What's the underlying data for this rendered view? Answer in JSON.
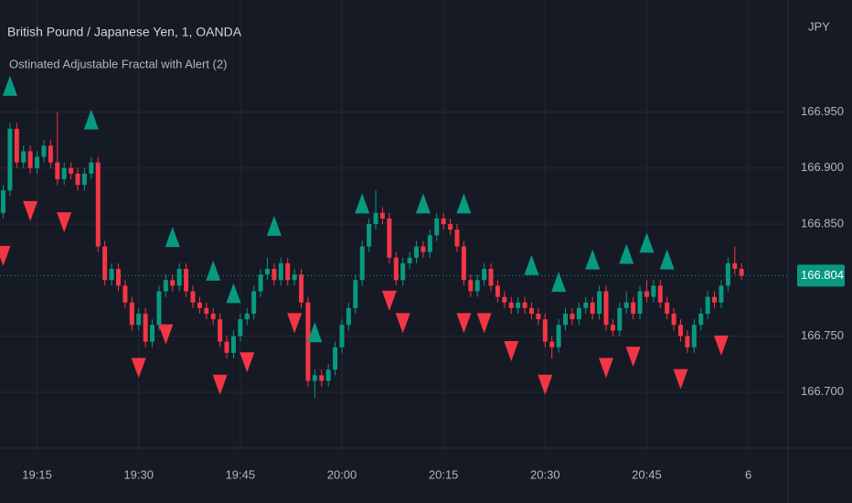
{
  "chart_data": {
    "type": "candlestick",
    "title": "British Pound / Japanese Yen, 1, OANDA",
    "subtitle": "Ostinated Adjustable Fractal with Alert (2)",
    "currency": "JPY",
    "up_color": "#089981",
    "down_color": "#f23645",
    "x": [
      "19:10",
      "19:11",
      "19:12",
      "19:13",
      "19:14",
      "19:15",
      "19:16",
      "19:17",
      "19:18",
      "19:19",
      "19:20",
      "19:21",
      "19:22",
      "19:23",
      "19:24",
      "19:25",
      "19:26",
      "19:27",
      "19:28",
      "19:29",
      "19:30",
      "19:31",
      "19:32",
      "19:33",
      "19:34",
      "19:35",
      "19:36",
      "19:37",
      "19:38",
      "19:39",
      "19:40",
      "19:41",
      "19:42",
      "19:43",
      "19:44",
      "19:45",
      "19:46",
      "19:47",
      "19:48",
      "19:49",
      "19:50",
      "19:51",
      "19:52",
      "19:53",
      "19:54",
      "19:55",
      "19:56",
      "19:57",
      "19:58",
      "19:59",
      "20:00",
      "20:01",
      "20:02",
      "20:03",
      "20:04",
      "20:05",
      "20:06",
      "20:07",
      "20:08",
      "20:09",
      "20:10",
      "20:11",
      "20:12",
      "20:13",
      "20:14",
      "20:15",
      "20:16",
      "20:17",
      "20:18",
      "20:19",
      "20:20",
      "20:21",
      "20:22",
      "20:23",
      "20:24",
      "20:25",
      "20:26",
      "20:27",
      "20:28",
      "20:29",
      "20:30",
      "20:31",
      "20:32",
      "20:33",
      "20:34",
      "20:35",
      "20:36",
      "20:37",
      "20:38",
      "20:39",
      "20:40",
      "20:41",
      "20:42",
      "20:43",
      "20:44",
      "20:45",
      "20:46",
      "20:47",
      "20:48",
      "20:49",
      "20:50",
      "20:51",
      "20:52",
      "20:53",
      "20:54",
      "20:55",
      "20:56",
      "20:57",
      "20:58",
      "20:59"
    ],
    "candles": [
      [
        166.86,
        166.885,
        166.855,
        166.88
      ],
      [
        166.88,
        166.94,
        166.875,
        166.935
      ],
      [
        166.935,
        166.94,
        166.9,
        166.905
      ],
      [
        166.905,
        166.92,
        166.9,
        166.915
      ],
      [
        166.915,
        166.92,
        166.895,
        166.9
      ],
      [
        166.9,
        166.915,
        166.895,
        166.91
      ],
      [
        166.91,
        166.925,
        166.905,
        166.92
      ],
      [
        166.92,
        166.925,
        166.9,
        166.905
      ],
      [
        166.905,
        166.95,
        166.885,
        166.89
      ],
      [
        166.89,
        166.905,
        166.885,
        166.9
      ],
      [
        166.9,
        166.905,
        166.89,
        166.895
      ],
      [
        166.895,
        166.9,
        166.88,
        166.885
      ],
      [
        166.885,
        166.9,
        166.88,
        166.895
      ],
      [
        166.895,
        166.91,
        166.89,
        166.905
      ],
      [
        166.905,
        166.91,
        166.825,
        166.83
      ],
      [
        166.83,
        166.835,
        166.795,
        166.8
      ],
      [
        166.8,
        166.815,
        166.795,
        166.81
      ],
      [
        166.81,
        166.815,
        166.79,
        166.795
      ],
      [
        166.795,
        166.8,
        166.775,
        166.78
      ],
      [
        166.78,
        166.785,
        166.755,
        166.76
      ],
      [
        166.76,
        166.775,
        166.755,
        166.77
      ],
      [
        166.77,
        166.775,
        166.74,
        166.745
      ],
      [
        166.745,
        166.765,
        166.74,
        166.76
      ],
      [
        166.76,
        166.795,
        166.755,
        166.79
      ],
      [
        166.79,
        166.805,
        166.785,
        166.8
      ],
      [
        166.8,
        166.805,
        166.79,
        166.795
      ],
      [
        166.795,
        166.815,
        166.79,
        166.81
      ],
      [
        166.81,
        166.815,
        166.785,
        166.79
      ],
      [
        166.79,
        166.795,
        166.775,
        166.78
      ],
      [
        166.78,
        166.785,
        166.77,
        166.775
      ],
      [
        166.775,
        166.78,
        166.765,
        166.77
      ],
      [
        166.77,
        166.775,
        166.76,
        166.765
      ],
      [
        166.765,
        166.77,
        166.74,
        166.745
      ],
      [
        166.745,
        166.75,
        166.73,
        166.735
      ],
      [
        166.735,
        166.755,
        166.73,
        166.75
      ],
      [
        166.75,
        166.77,
        166.745,
        166.765
      ],
      [
        166.765,
        166.775,
        166.76,
        166.77
      ],
      [
        166.77,
        166.795,
        166.765,
        166.79
      ],
      [
        166.79,
        166.81,
        166.785,
        166.805
      ],
      [
        166.805,
        166.82,
        166.8,
        166.81
      ],
      [
        166.81,
        166.815,
        166.795,
        166.8
      ],
      [
        166.8,
        166.82,
        166.795,
        166.815
      ],
      [
        166.815,
        166.82,
        166.795,
        166.8
      ],
      [
        166.8,
        166.81,
        166.795,
        166.805
      ],
      [
        166.805,
        166.81,
        166.775,
        166.78
      ],
      [
        166.78,
        166.785,
        166.705,
        166.71
      ],
      [
        166.71,
        166.72,
        166.695,
        166.715
      ],
      [
        166.715,
        166.72,
        166.705,
        166.71
      ],
      [
        166.71,
        166.725,
        166.705,
        166.72
      ],
      [
        166.72,
        166.745,
        166.715,
        166.74
      ],
      [
        166.74,
        166.765,
        166.735,
        166.76
      ],
      [
        166.76,
        166.78,
        166.755,
        166.775
      ],
      [
        166.775,
        166.805,
        166.77,
        166.8
      ],
      [
        166.8,
        166.835,
        166.795,
        166.83
      ],
      [
        166.83,
        166.855,
        166.825,
        166.85
      ],
      [
        166.85,
        166.88,
        166.845,
        166.86
      ],
      [
        166.86,
        166.865,
        166.85,
        166.855
      ],
      [
        166.855,
        166.86,
        166.815,
        166.82
      ],
      [
        166.82,
        166.825,
        166.795,
        166.8
      ],
      [
        166.8,
        166.82,
        166.795,
        166.815
      ],
      [
        166.815,
        166.825,
        166.81,
        166.82
      ],
      [
        166.82,
        166.835,
        166.815,
        166.83
      ],
      [
        166.83,
        166.835,
        166.82,
        166.825
      ],
      [
        166.825,
        166.845,
        166.82,
        166.84
      ],
      [
        166.84,
        166.86,
        166.835,
        166.855
      ],
      [
        166.855,
        166.86,
        166.845,
        166.85
      ],
      [
        166.85,
        166.855,
        166.84,
        166.845
      ],
      [
        166.845,
        166.85,
        166.825,
        166.83
      ],
      [
        166.83,
        166.835,
        166.795,
        166.8
      ],
      [
        166.8,
        166.805,
        166.785,
        166.79
      ],
      [
        166.79,
        166.805,
        166.785,
        166.8
      ],
      [
        166.8,
        166.815,
        166.795,
        166.81
      ],
      [
        166.81,
        166.815,
        166.79,
        166.795
      ],
      [
        166.795,
        166.8,
        166.78,
        166.785
      ],
      [
        166.785,
        166.79,
        166.775,
        166.78
      ],
      [
        166.78,
        166.785,
        166.77,
        166.775
      ],
      [
        166.775,
        166.785,
        166.77,
        166.78
      ],
      [
        166.78,
        166.785,
        166.77,
        166.775
      ],
      [
        166.775,
        166.78,
        166.765,
        166.77
      ],
      [
        166.77,
        166.775,
        166.76,
        166.765
      ],
      [
        166.765,
        166.77,
        166.74,
        166.745
      ],
      [
        166.745,
        166.75,
        166.73,
        166.74
      ],
      [
        166.74,
        166.765,
        166.735,
        166.76
      ],
      [
        166.76,
        166.775,
        166.755,
        166.77
      ],
      [
        166.77,
        166.775,
        166.76,
        166.765
      ],
      [
        166.765,
        166.78,
        166.76,
        166.775
      ],
      [
        166.775,
        166.785,
        166.77,
        166.78
      ],
      [
        166.78,
        166.785,
        166.765,
        166.77
      ],
      [
        166.77,
        166.795,
        166.765,
        166.79
      ],
      [
        166.79,
        166.795,
        166.755,
        166.76
      ],
      [
        166.76,
        166.765,
        166.75,
        166.755
      ],
      [
        166.755,
        166.78,
        166.75,
        166.775
      ],
      [
        166.775,
        166.79,
        166.77,
        166.78
      ],
      [
        166.78,
        166.785,
        166.765,
        166.77
      ],
      [
        166.77,
        166.795,
        166.765,
        166.79
      ],
      [
        166.79,
        166.8,
        166.78,
        166.785
      ],
      [
        166.785,
        166.8,
        166.78,
        166.795
      ],
      [
        166.795,
        166.8,
        166.775,
        166.78
      ],
      [
        166.78,
        166.785,
        166.765,
        166.77
      ],
      [
        166.77,
        166.775,
        166.755,
        166.76
      ],
      [
        166.76,
        166.765,
        166.745,
        166.75
      ],
      [
        166.75,
        166.755,
        166.735,
        166.74
      ],
      [
        166.74,
        166.765,
        166.735,
        166.76
      ],
      [
        166.76,
        166.775,
        166.755,
        166.77
      ],
      [
        166.77,
        166.79,
        166.765,
        166.785
      ],
      [
        166.785,
        166.79,
        166.775,
        166.78
      ],
      [
        166.78,
        166.8,
        166.775,
        166.795
      ],
      [
        166.795,
        166.82,
        166.79,
        166.815
      ],
      [
        166.815,
        166.83,
        166.805,
        166.81
      ],
      [
        166.81,
        166.815,
        166.8,
        166.804
      ]
    ],
    "fractal_up": [
      "19:11",
      "19:23",
      "19:35",
      "19:41",
      "19:44",
      "19:50",
      "19:56",
      "20:03",
      "20:12",
      "20:18",
      "20:28",
      "20:32",
      "20:37",
      "20:42",
      "20:45",
      "20:48"
    ],
    "fractal_down": [
      "19:10",
      "19:14",
      "19:19",
      "19:30",
      "19:34",
      "19:42",
      "19:46",
      "19:53",
      "20:07",
      "20:09",
      "20:18",
      "20:21",
      "20:25",
      "20:30",
      "20:39",
      "20:43",
      "20:50",
      "20:56"
    ],
    "ylim": [
      166.65,
      167.05
    ],
    "yticks": [
      {
        "value": 166.7,
        "label": "166.700"
      },
      {
        "value": 166.75,
        "label": "166.750"
      },
      {
        "value": 166.85,
        "label": "166.850"
      },
      {
        "value": 166.9,
        "label": "166.900"
      },
      {
        "value": 166.95,
        "label": "166.950"
      }
    ],
    "xticks": [
      "19:15",
      "19:30",
      "19:45",
      "20:00",
      "20:15",
      "20:30",
      "20:45",
      {
        "value": "21:00",
        "label": "6"
      }
    ],
    "grid": true
  }
}
